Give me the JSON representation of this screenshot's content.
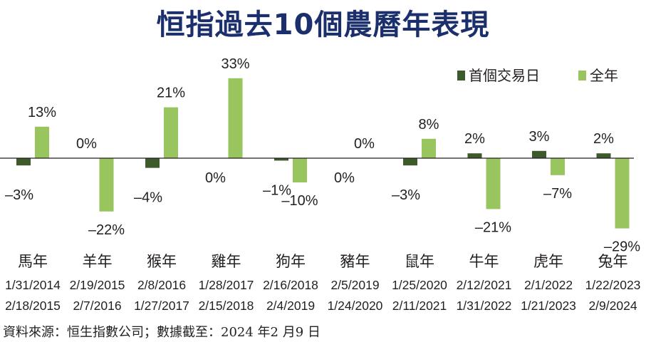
{
  "chart_data": {
    "type": "bar",
    "title": "恒指過去10個農曆年表現",
    "categories": [
      "馬年",
      "羊年",
      "猴年",
      "雞年",
      "狗年",
      "豬年",
      "鼠年",
      "牛年",
      "虎年",
      "兔年"
    ],
    "date_ranges": [
      [
        "1/31/2014",
        "2/18/2015"
      ],
      [
        "2/19/2015",
        "2/7/2016"
      ],
      [
        "2/8/2016",
        "1/27/2017"
      ],
      [
        "1/28/2017",
        "2/15/2018"
      ],
      [
        "2/16/2018",
        "2/4/2019"
      ],
      [
        "2/5/2019",
        "1/24/2020"
      ],
      [
        "1/25/2020",
        "2/11/2021"
      ],
      [
        "2/12/2021",
        "1/31/2022"
      ],
      [
        "2/1/2022",
        "1/21/2023"
      ],
      [
        "1/22/2023",
        "2/9/2024"
      ]
    ],
    "series": [
      {
        "name": "首個交易日",
        "color": "#3d5a2b",
        "values": [
          -3,
          0,
          -4,
          0,
          -1,
          0,
          -3,
          2,
          3,
          2
        ],
        "labels": [
          "–3%",
          "0%",
          "–4%",
          "0%",
          "–1%",
          "0%",
          "–3%",
          "2%",
          "3%",
          "2%"
        ]
      },
      {
        "name": "全年",
        "color": "#98c55d",
        "values": [
          13,
          -22,
          21,
          33,
          -10,
          0,
          8,
          -21,
          -7,
          -29
        ],
        "labels": [
          "13%",
          "–22%",
          "21%",
          "33%",
          "–10%",
          "0%",
          "8%",
          "–21%",
          "–7%",
          "–29%"
        ]
      }
    ],
    "legend": "top-right",
    "grid": false,
    "ylim": [
      -30,
      33
    ]
  },
  "source": "資料來源：恒生指數公司；數據截至：2024 年2 月9 日"
}
